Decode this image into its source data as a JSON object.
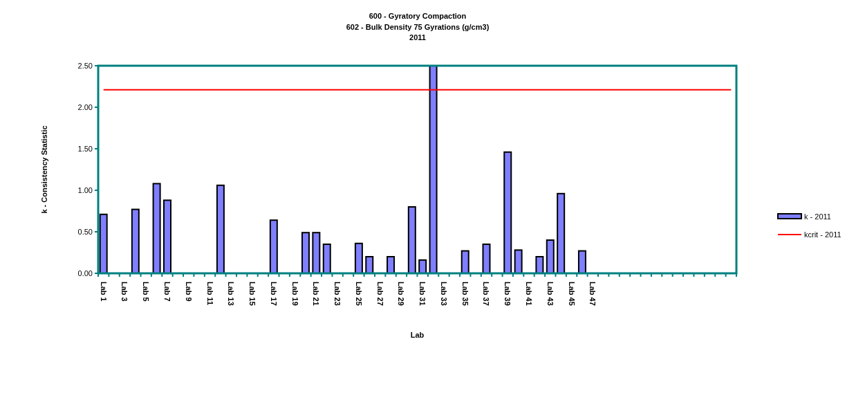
{
  "chart_data": {
    "type": "bar",
    "title": "600 - Gyratory Compaction",
    "subtitle": "602 - Bulk Density 75 Gyrations (g/cm3)\n2011",
    "xlabel": "Lab",
    "ylabel": "k - Consistency Statistic",
    "categories": [
      "Lab 1",
      null,
      "Lab 3",
      null,
      "Lab 5",
      null,
      "Lab 7",
      null,
      "Lab 9",
      null,
      "Lab 11",
      null,
      "Lab 13",
      null,
      "Lab 15",
      null,
      "Lab 17",
      null,
      "Lab 19",
      null,
      "Lab 21",
      null,
      "Lab 23",
      null,
      "Lab 25",
      null,
      "Lab 27",
      null,
      "Lab 29",
      null,
      "Lab 31",
      null,
      "Lab 33",
      null,
      "Lab 35",
      null,
      "Lab 37",
      null,
      "Lab 39",
      null,
      "Lab 41",
      null,
      "Lab 43",
      null,
      "Lab 45",
      null,
      "Lab 47",
      null,
      null,
      null,
      null,
      null,
      null,
      null,
      null,
      null,
      null,
      null,
      null,
      null
    ],
    "series": [
      {
        "name": "k - 2011",
        "color": "#7f7fff",
        "values": [
          0.71,
          null,
          null,
          0.77,
          null,
          1.08,
          0.88,
          null,
          null,
          null,
          null,
          1.06,
          null,
          null,
          null,
          null,
          0.64,
          null,
          null,
          0.49,
          0.49,
          0.35,
          null,
          null,
          0.36,
          0.2,
          null,
          0.2,
          null,
          0.8,
          0.16,
          2.5,
          null,
          null,
          0.27,
          null,
          0.35,
          null,
          1.46,
          0.28,
          null,
          0.2,
          0.4,
          0.96,
          null,
          0.27,
          null,
          null,
          null,
          null,
          null,
          null,
          null,
          null,
          null,
          null,
          null,
          null,
          null,
          null
        ]
      },
      {
        "name": "kcrit - 2011",
        "type": "line",
        "color": "#ff0000",
        "values": [
          2.21,
          2.21,
          2.21,
          2.21,
          2.21,
          2.21,
          2.21,
          2.21,
          2.21,
          2.21,
          2.21,
          2.21,
          2.21,
          2.21,
          2.21,
          2.21,
          2.21,
          2.21,
          2.21,
          2.21,
          2.21,
          2.21,
          2.21,
          2.21,
          2.21,
          2.21,
          2.21,
          2.21,
          2.21,
          2.21,
          2.21,
          2.21,
          2.21,
          2.21,
          2.21,
          2.21,
          2.21,
          2.21,
          2.21,
          2.21,
          2.21,
          2.21,
          2.21,
          2.21,
          2.21,
          2.21,
          2.21,
          2.21,
          2.21,
          2.21,
          2.21,
          2.21,
          2.21,
          2.21,
          2.21,
          2.21,
          2.21,
          2.21,
          2.21,
          2.21
        ]
      }
    ],
    "ylim": [
      0,
      2.5
    ],
    "yticks": [
      {
        "value": 0,
        "label": "0.00"
      },
      {
        "value": 0.5,
        "label": "0.50"
      },
      {
        "value": 1,
        "label": "1.00"
      },
      {
        "value": 1.5,
        "label": "1.50"
      },
      {
        "value": 2,
        "label": "2.00"
      },
      {
        "value": 2.5,
        "label": "2.50"
      }
    ],
    "legend": "right",
    "grid": false,
    "marker": "none",
    "line_style": "solid"
  }
}
